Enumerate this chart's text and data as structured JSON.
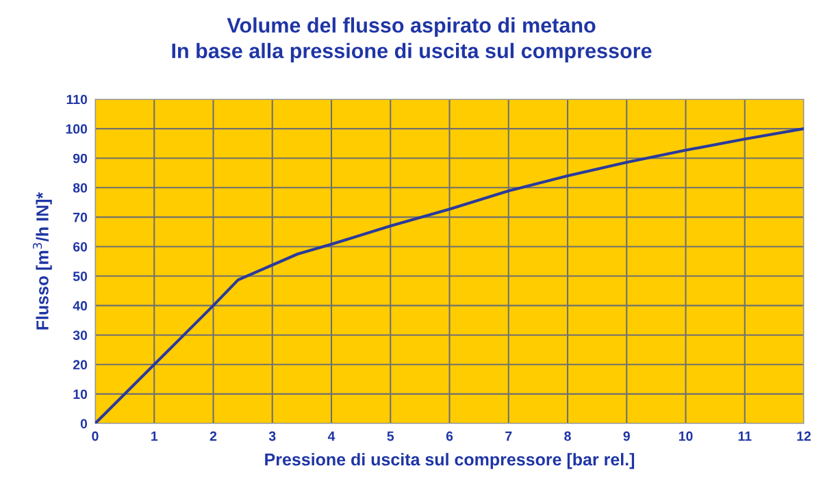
{
  "chart_data": {
    "type": "line",
    "title": "Volume del flusso aspirato di metano\nIn base alla pressione di uscita sul compressore",
    "xlabel": "Pressione di uscita sul compressore [bar rel.]",
    "ylabel": "Flusso [m$^{3}$/h IN]*",
    "x": [
      0,
      1,
      2,
      2.42,
      3.43,
      4,
      5,
      6,
      7,
      8,
      9,
      10,
      11,
      12
    ],
    "series": [
      {
        "color": "#2a3a9c",
        "values": [
          0,
          20,
          40,
          48.7,
          57.5,
          60.8,
          67,
          72.7,
          78.9,
          84,
          88.6,
          92.7,
          96.5,
          100
        ]
      }
    ],
    "xlim": [
      0,
      12
    ],
    "xticks": [
      0,
      1,
      2,
      3,
      4,
      5,
      6,
      7,
      8,
      9,
      10,
      11,
      12
    ],
    "ylim": [
      0,
      110
    ],
    "yticks": [
      0,
      10,
      20,
      30,
      40,
      50,
      60,
      70,
      80,
      90,
      100,
      110
    ],
    "grid": true,
    "marker": "none",
    "line_style": "solid"
  }
}
